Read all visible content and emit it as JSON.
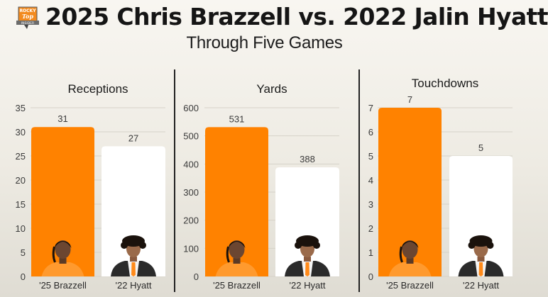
{
  "header": {
    "title": "2025 Chris Brazzell vs. 2022 Jalin Hyatt",
    "subtitle": "Through Five Games",
    "logo": {
      "icon": "rocky-top-insider-logo-icon",
      "line1": "ROCKY",
      "line2": "Top",
      "line3": "INSIDER"
    }
  },
  "colors": {
    "brazzell": "#ff8200",
    "hyatt": "#ffffff",
    "grid": "#d6d2c8",
    "divider": "#222222"
  },
  "chart_data": [
    {
      "type": "bar",
      "title": "Receptions",
      "categories": [
        "'25 Brazzell",
        "'22 Hyatt"
      ],
      "values": [
        31,
        27
      ],
      "data_labels": [
        "31",
        "27"
      ],
      "ylim": [
        0,
        35
      ],
      "yticks": [
        0,
        5,
        10,
        15,
        20,
        25,
        30,
        35
      ],
      "grid": true,
      "xlabel": "",
      "ylabel": ""
    },
    {
      "type": "bar",
      "title": "Yards",
      "categories": [
        "'25 Brazzell",
        "'22 Hyatt"
      ],
      "values": [
        531,
        388
      ],
      "data_labels": [
        "531",
        "388"
      ],
      "ylim": [
        0,
        600
      ],
      "yticks": [
        0,
        100,
        200,
        300,
        400,
        500,
        600
      ],
      "grid": true,
      "xlabel": "",
      "ylabel": ""
    },
    {
      "type": "bar",
      "title": "Touchdowns",
      "categories": [
        "'25 Brazzell",
        "'22 Hyatt"
      ],
      "values": [
        7,
        5
      ],
      "data_labels": [
        "7",
        "5"
      ],
      "ylim": [
        0,
        7
      ],
      "yticks": [
        0,
        1,
        2,
        3,
        4,
        5,
        6,
        7
      ],
      "grid": true,
      "xlabel": "",
      "ylabel": ""
    }
  ],
  "players": [
    {
      "name": "'25 Brazzell",
      "photo_icon": "brazzell-headshot-icon"
    },
    {
      "name": "'22 Hyatt",
      "photo_icon": "hyatt-headshot-icon"
    }
  ]
}
